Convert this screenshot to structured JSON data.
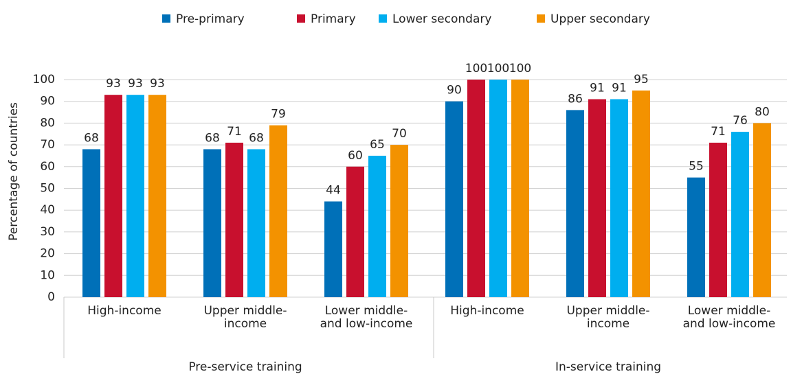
{
  "chart_data": {
    "type": "bar",
    "y_label": "Percentage of countries",
    "categories": [
      "High-income",
      "Upper middle-\nincome",
      "Lower middle-\nand low-income",
      "High-income",
      "Upper middle-\nincome",
      "Lower middle-\nand low-income"
    ],
    "groups": [
      "Pre-service training",
      "In-service training"
    ],
    "series": [
      {
        "name": "Pre-primary",
        "color": "#0070b8",
        "values": [
          68,
          68,
          44,
          90,
          86,
          55
        ]
      },
      {
        "name": "Primary",
        "color": "#c8102e",
        "values": [
          93,
          71,
          60,
          100,
          91,
          71
        ]
      },
      {
        "name": "Lower secondary",
        "color": "#00aeef",
        "values": [
          93,
          68,
          65,
          100,
          91,
          76
        ]
      },
      {
        "name": "Upper secondary",
        "color": "#f39200",
        "values": [
          93,
          79,
          70,
          100,
          95,
          80
        ]
      }
    ],
    "ylim": [
      0,
      100
    ],
    "yticks": [
      0,
      10,
      20,
      30,
      40,
      50,
      60,
      70,
      80,
      90,
      100
    ],
    "grid": true,
    "legend": "top"
  }
}
